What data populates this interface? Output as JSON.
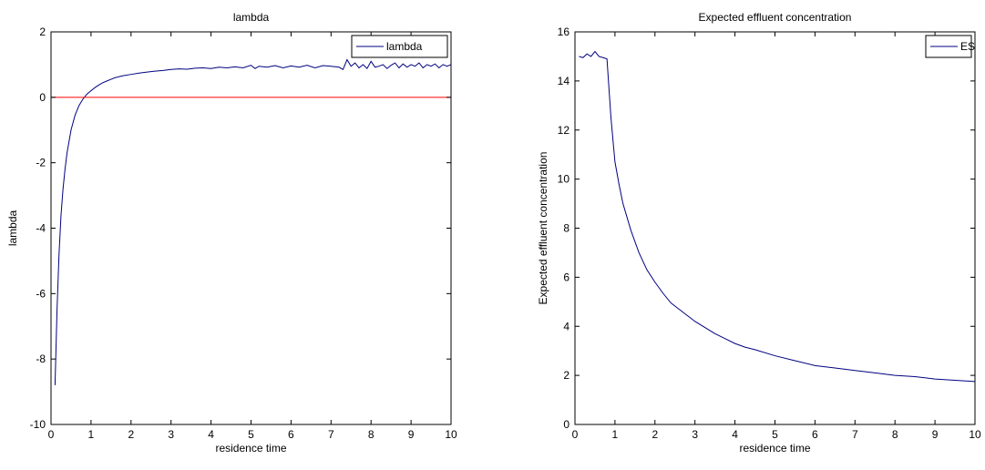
{
  "chart_data": [
    {
      "type": "line",
      "title": "lambda",
      "xlabel": "residence time",
      "ylabel": "lambda",
      "xlim": [
        0,
        10
      ],
      "ylim": [
        -10,
        2
      ],
      "xticks": [
        "0",
        "1",
        "2",
        "3",
        "4",
        "5",
        "6",
        "7",
        "8",
        "9",
        "10"
      ],
      "yticks": [
        "-10",
        "-8",
        "-6",
        "-4",
        "-2",
        "0",
        "2"
      ],
      "grid": false,
      "legend_position": "top-right",
      "series": [
        {
          "name": "lambda",
          "color": "#000080",
          "x": [
            0.1,
            0.15,
            0.2,
            0.25,
            0.3,
            0.35,
            0.4,
            0.5,
            0.6,
            0.7,
            0.8,
            0.9,
            1.0,
            1.1,
            1.2,
            1.3,
            1.4,
            1.5,
            1.6,
            1.8,
            2.0,
            2.2,
            2.4,
            2.6,
            2.8,
            3.0,
            3.2,
            3.4,
            3.6,
            3.8,
            4.0,
            4.2,
            4.4,
            4.6,
            4.8,
            5.0,
            5.1,
            5.2,
            5.4,
            5.6,
            5.8,
            6.0,
            6.2,
            6.4,
            6.6,
            6.8,
            7.0,
            7.2,
            7.3,
            7.4,
            7.5,
            7.6,
            7.7,
            7.8,
            7.9,
            8.0,
            8.1,
            8.2,
            8.3,
            8.4,
            8.5,
            8.6,
            8.7,
            8.8,
            8.9,
            9.0,
            9.1,
            9.2,
            9.3,
            9.4,
            9.5,
            9.6,
            9.7,
            9.8,
            9.9,
            10.0
          ],
          "y": [
            -8.8,
            -6.5,
            -4.8,
            -3.6,
            -2.8,
            -2.2,
            -1.7,
            -1.0,
            -0.55,
            -0.25,
            -0.05,
            0.1,
            0.2,
            0.3,
            0.38,
            0.45,
            0.5,
            0.55,
            0.6,
            0.66,
            0.7,
            0.74,
            0.77,
            0.8,
            0.82,
            0.85,
            0.87,
            0.86,
            0.89,
            0.9,
            0.88,
            0.92,
            0.9,
            0.93,
            0.9,
            0.98,
            0.88,
            0.95,
            0.92,
            0.97,
            0.9,
            0.96,
            0.92,
            0.98,
            0.9,
            0.97,
            0.95,
            0.92,
            0.85,
            1.15,
            0.95,
            1.05,
            0.9,
            1.0,
            0.88,
            1.1,
            0.92,
            0.95,
            1.0,
            0.88,
            0.98,
            1.05,
            0.9,
            1.02,
            0.92,
            1.0,
            0.95,
            1.05,
            0.9,
            1.0,
            0.95,
            1.02,
            0.9,
            1.0,
            0.95,
            1.0
          ]
        },
        {
          "name": "",
          "color": "#ff0000",
          "x": [
            0,
            10
          ],
          "y": [
            0,
            0
          ]
        }
      ],
      "legend": [
        "lambda"
      ]
    },
    {
      "type": "line",
      "title": "Expected effluent concentration",
      "xlabel": "residence time",
      "ylabel": "Expected effluent concentration",
      "xlim": [
        0,
        10
      ],
      "ylim": [
        0,
        16
      ],
      "xticks": [
        "0",
        "1",
        "2",
        "3",
        "4",
        "5",
        "6",
        "7",
        "8",
        "9",
        "10"
      ],
      "yticks": [
        "0",
        "2",
        "4",
        "6",
        "8",
        "10",
        "12",
        "14",
        "16"
      ],
      "grid": false,
      "legend_position": "top-right",
      "series": [
        {
          "name": "ES",
          "color": "#000080",
          "x": [
            0.1,
            0.2,
            0.3,
            0.4,
            0.5,
            0.6,
            0.7,
            0.8,
            0.9,
            1.0,
            1.1,
            1.2,
            1.4,
            1.6,
            1.8,
            2.0,
            2.2,
            2.4,
            2.6,
            2.8,
            3.0,
            3.25,
            3.5,
            3.75,
            4.0,
            4.25,
            4.5,
            5.0,
            5.5,
            6.0,
            6.5,
            7.0,
            7.5,
            8.0,
            8.5,
            9.0,
            9.5,
            10.0
          ],
          "y": [
            15.0,
            14.95,
            15.1,
            15.0,
            15.2,
            15.0,
            14.95,
            14.9,
            12.5,
            10.7,
            9.8,
            9.0,
            7.9,
            7.0,
            6.3,
            5.8,
            5.35,
            4.95,
            4.7,
            4.45,
            4.2,
            3.95,
            3.7,
            3.5,
            3.3,
            3.15,
            3.05,
            2.8,
            2.6,
            2.4,
            2.3,
            2.2,
            2.1,
            2.0,
            1.95,
            1.85,
            1.8,
            1.75
          ]
        }
      ],
      "legend": [
        "ES"
      ]
    }
  ]
}
